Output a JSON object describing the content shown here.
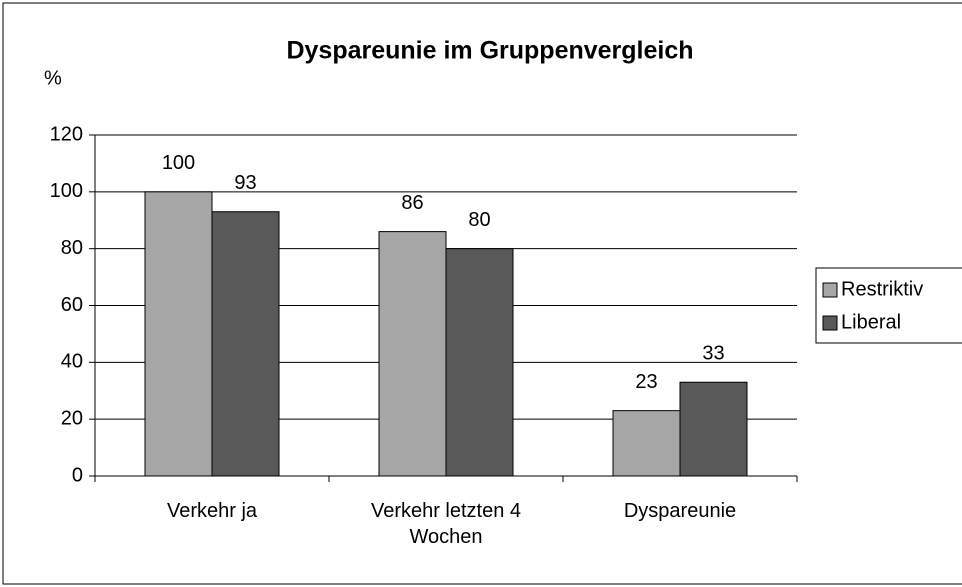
{
  "chart_data": {
    "type": "bar",
    "title": "Dyspareunie im Gruppenvergleich",
    "y_label": "%",
    "categories": [
      "Verkehr ja",
      "Verkehr letzten 4 Wochen",
      "Dyspareunie"
    ],
    "series": [
      {
        "name": "Restriktiv",
        "color": "#a6a6a6",
        "values": [
          100,
          86,
          23
        ]
      },
      {
        "name": "Liberal",
        "color": "#595959",
        "values": [
          93,
          80,
          33
        ]
      }
    ],
    "ylim": [
      0,
      120
    ],
    "yticks": [
      0,
      20,
      40,
      60,
      80,
      100,
      120
    ],
    "grid": true,
    "legend": "right"
  }
}
